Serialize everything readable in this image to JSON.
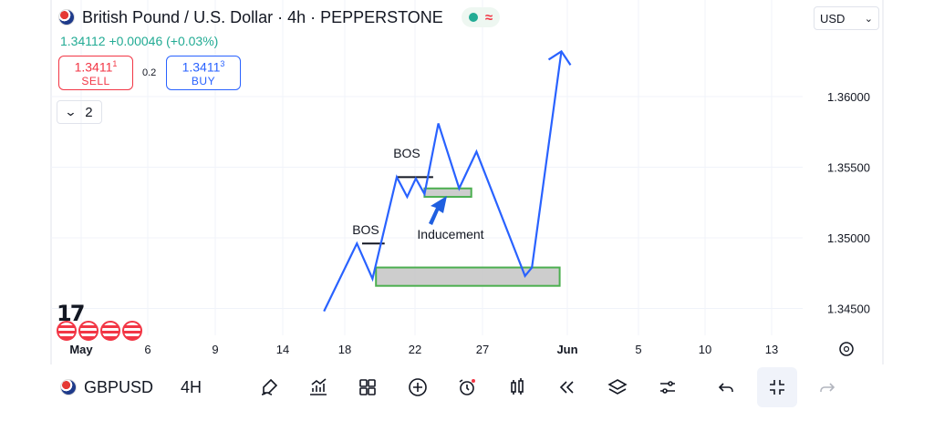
{
  "header": {
    "title": "British Pound / U.S. Dollar · 4h · PEPPERSTONE",
    "change": "1.34112 +0.00046 (+0.03%)",
    "wave_glyph": "≈"
  },
  "trade": {
    "sell_price": "1.3411",
    "sell_sup": "1",
    "sell_label": "SELL",
    "buy_price": "1.3411",
    "buy_sup": "3",
    "buy_label": "BUY",
    "spread": "0.2"
  },
  "collapse": {
    "count": "2"
  },
  "currency": {
    "value": "USD"
  },
  "y_axis": {
    "ticks": [
      {
        "value": 1.36,
        "label": "1.36000"
      },
      {
        "value": 1.355,
        "label": "1.35500"
      },
      {
        "value": 1.35,
        "label": "1.35000"
      },
      {
        "value": 1.345,
        "label": "1.34500"
      }
    ]
  },
  "x_axis": {
    "ticks": [
      {
        "label": "May",
        "bold": true
      },
      {
        "label": "6"
      },
      {
        "label": "9"
      },
      {
        "label": "14"
      },
      {
        "label": "18"
      },
      {
        "label": "22"
      },
      {
        "label": "27"
      },
      {
        "label": "Jun",
        "bold": true
      },
      {
        "label": "5"
      },
      {
        "label": "10"
      },
      {
        "label": "13"
      }
    ]
  },
  "annotations": {
    "bos_low": "BOS",
    "bos_high": "BOS",
    "inducement": "Inducement"
  },
  "logo": {
    "text": "17"
  },
  "bottom_bar": {
    "symbol": "GBPUSD",
    "timeframe": "4H",
    "tools": [
      "pen-icon",
      "indicators-icon",
      "layout-icon",
      "plus-circle-icon",
      "alarm-icon",
      "replay-bars-icon",
      "rewind-icon",
      "layers-icon",
      "settings-sliders-icon",
      "undo-icon",
      "collapse-icon",
      "redo-icon"
    ]
  },
  "colors": {
    "line": "#2962ff",
    "zone_fill": "#c8c8c8",
    "zone_border": "#4caf50",
    "up": "#22ab94",
    "down": "#f23645"
  },
  "chart_data": {
    "type": "line",
    "series": [
      {
        "points": [
          [
            16.8,
            1.3448
          ],
          [
            18.7,
            1.3496
          ],
          [
            19.6,
            1.3471
          ],
          [
            21.0,
            1.3543
          ],
          [
            21.6,
            1.3529
          ],
          [
            22.1,
            1.3542
          ],
          [
            22.6,
            1.3531
          ],
          [
            23.4,
            1.3581
          ],
          [
            24.6,
            1.3535
          ],
          [
            25.6,
            1.3561
          ],
          [
            28.4,
            1.3473
          ],
          [
            28.8,
            1.3479
          ],
          [
            30.5,
            1.3632
          ]
        ]
      }
    ],
    "zones": [
      {
        "x0": 19.8,
        "x1": 30.4,
        "y0": 1.3466,
        "y1": 1.3479,
        "label": ""
      },
      {
        "x0": 22.6,
        "x1": 25.3,
        "y0": 1.3529,
        "y1": 1.3535,
        "label": ""
      }
    ],
    "bos_lines": [
      {
        "x0": 19.0,
        "x1": 20.3,
        "y": 1.3496
      },
      {
        "x0": 21.0,
        "x1": 23.1,
        "y": 1.3543
      }
    ],
    "ylim": [
      1.3432,
      1.3653
    ],
    "grid": true
  }
}
